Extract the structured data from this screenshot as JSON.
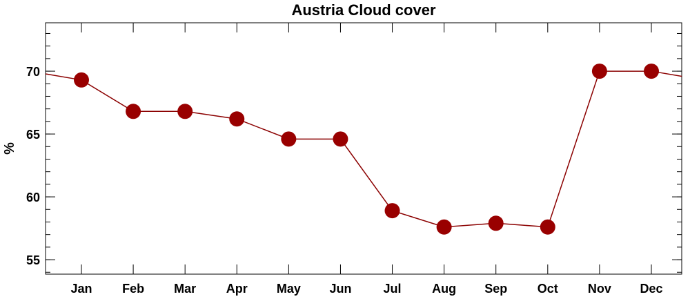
{
  "chart_data": {
    "type": "line",
    "title": "Austria Cloud cover",
    "y_label": "%",
    "categories": [
      "Jan",
      "Feb",
      "Mar",
      "Apr",
      "May",
      "Jun",
      "Jul",
      "Aug",
      "Sep",
      "Oct",
      "Nov",
      "Dec"
    ],
    "series": [
      {
        "name": "Cloud cover",
        "color": "#990000",
        "values": [
          69.3,
          66.8,
          66.8,
          66.2,
          64.6,
          64.6,
          58.9,
          57.6,
          57.9,
          57.6,
          70.0,
          70.0
        ]
      }
    ],
    "ylim": [
      53.85,
      73.85
    ],
    "yticks": [
      55,
      60,
      65,
      70
    ]
  }
}
